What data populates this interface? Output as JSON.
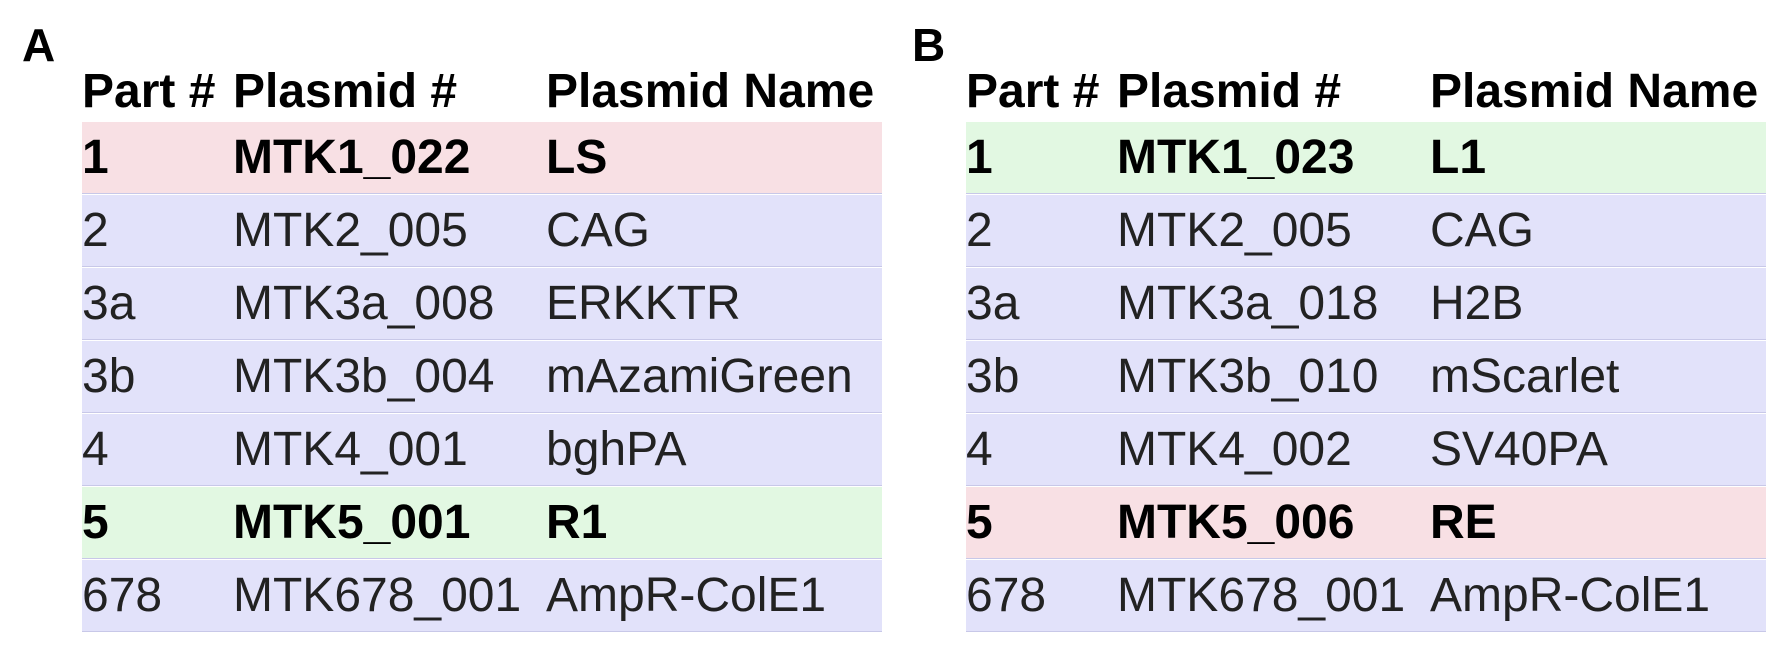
{
  "panels": [
    {
      "label": "A",
      "headers": [
        "Part #",
        "Plasmid #",
        "Plasmid Name"
      ],
      "rows": [
        {
          "cells": [
            "1",
            "MTK1_022",
            "LS"
          ],
          "bold": true,
          "color": "#f8e0e4"
        },
        {
          "cells": [
            "2",
            "MTK2_005",
            "CAG"
          ],
          "bold": false,
          "color": "#e2e2fa"
        },
        {
          "cells": [
            "3a",
            "MTK3a_008",
            "ERKKTR"
          ],
          "bold": false,
          "color": "#e2e2fa"
        },
        {
          "cells": [
            "3b",
            "MTK3b_004",
            "mAzamiGreen"
          ],
          "bold": false,
          "color": "#e2e2fa"
        },
        {
          "cells": [
            "4",
            "MTK4_001",
            "bghPA"
          ],
          "bold": false,
          "color": "#e2e2fa"
        },
        {
          "cells": [
            "5",
            "MTK5_001",
            "R1"
          ],
          "bold": true,
          "color": "#e2f8e2"
        },
        {
          "cells": [
            "678",
            "MTK678_001",
            "AmpR-ColE1"
          ],
          "bold": false,
          "color": "#e2e2fa"
        }
      ]
    },
    {
      "label": "B",
      "headers": [
        "Part #",
        "Plasmid #",
        "Plasmid Name"
      ],
      "rows": [
        {
          "cells": [
            "1",
            "MTK1_023",
            "L1"
          ],
          "bold": true,
          "color": "#e2f8e2"
        },
        {
          "cells": [
            "2",
            "MTK2_005",
            "CAG"
          ],
          "bold": false,
          "color": "#e2e2fa"
        },
        {
          "cells": [
            "3a",
            "MTK3a_018",
            "H2B"
          ],
          "bold": false,
          "color": "#e2e2fa"
        },
        {
          "cells": [
            "3b",
            "MTK3b_010",
            "mScarlet"
          ],
          "bold": false,
          "color": "#e2e2fa"
        },
        {
          "cells": [
            "4",
            "MTK4_002",
            "SV40PA"
          ],
          "bold": false,
          "color": "#e2e2fa"
        },
        {
          "cells": [
            "5",
            "MTK5_006",
            "RE"
          ],
          "bold": true,
          "color": "#f8e0e4"
        },
        {
          "cells": [
            "678",
            "MTK678_001",
            "AmpR-ColE1"
          ],
          "bold": false,
          "color": "#e2e2fa"
        }
      ]
    }
  ]
}
